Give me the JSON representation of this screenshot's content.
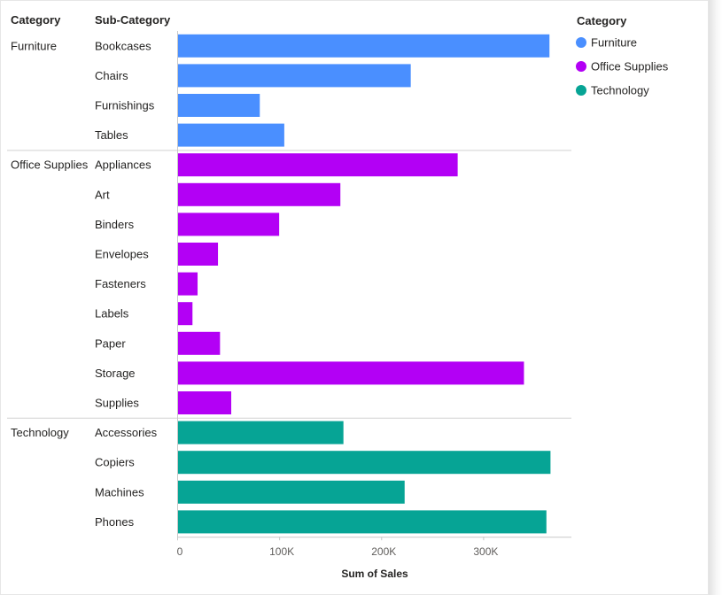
{
  "chart_data": {
    "type": "bar",
    "orientation": "horizontal",
    "headers": {
      "category": "Category",
      "subcategory": "Sub-Category"
    },
    "xlabel": "Sum of Sales",
    "xlim": [
      0,
      370000
    ],
    "xticks": [
      {
        "value": 0,
        "label": "0"
      },
      {
        "value": 100000,
        "label": "100K"
      },
      {
        "value": 200000,
        "label": "200K"
      },
      {
        "value": 300000,
        "label": "300K"
      }
    ],
    "grid": false,
    "legend": {
      "title": "Category",
      "position": "right",
      "items": [
        {
          "label": "Furniture",
          "color": "#4a8fff"
        },
        {
          "label": "Office Supplies",
          "color": "#b300f5"
        },
        {
          "label": "Technology",
          "color": "#06a495"
        }
      ]
    },
    "groups": [
      {
        "category": "Furniture",
        "color": "#4a8fff",
        "items": [
          {
            "label": "Bookcases",
            "value": 365000
          },
          {
            "label": "Chairs",
            "value": 229000
          },
          {
            "label": "Furnishings",
            "value": 81000
          },
          {
            "label": "Tables",
            "value": 105000
          }
        ]
      },
      {
        "category": "Office Supplies",
        "color": "#b300f5",
        "items": [
          {
            "label": "Appliances",
            "value": 275000
          },
          {
            "label": "Art",
            "value": 160000
          },
          {
            "label": "Binders",
            "value": 100000
          },
          {
            "label": "Envelopes",
            "value": 40000
          },
          {
            "label": "Fasteners",
            "value": 20000
          },
          {
            "label": "Labels",
            "value": 15000
          },
          {
            "label": "Paper",
            "value": 42000
          },
          {
            "label": "Storage",
            "value": 340000
          },
          {
            "label": "Supplies",
            "value": 53000
          }
        ]
      },
      {
        "category": "Technology",
        "color": "#06a495",
        "items": [
          {
            "label": "Accessories",
            "value": 163000
          },
          {
            "label": "Copiers",
            "value": 366000
          },
          {
            "label": "Machines",
            "value": 223000
          },
          {
            "label": "Phones",
            "value": 362000
          }
        ]
      }
    ]
  }
}
